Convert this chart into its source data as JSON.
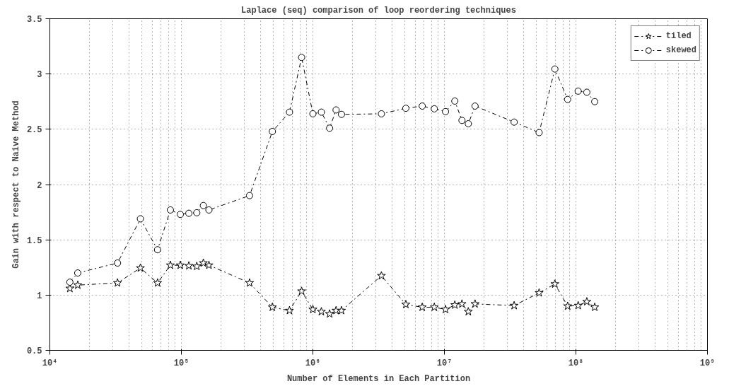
{
  "chart_data": {
    "type": "line",
    "title": "Laplace (seq) comparison of loop reordering techniques",
    "xlabel": "Number of Elements in Each Partition",
    "ylabel": "Gain with respect to Naive Method",
    "x": [
      14200,
      16300,
      32700,
      48800,
      65900,
      82500,
      98200,
      114000,
      131000,
      147000,
      162000,
      330000,
      492000,
      664000,
      821000,
      1000000,
      1160000,
      1340000,
      1500000,
      1650000,
      3320000,
      5090000,
      6780000,
      8380000,
      10200000,
      12000000,
      13600000,
      15200000,
      17100000,
      33900000,
      52500000,
      69200000,
      86500000,
      104000000,
      121000000,
      139000000
    ],
    "series": [
      {
        "name": "tiled",
        "color": "#000000",
        "marker": "star",
        "line_style": "dashed",
        "values": [
          1.06,
          1.09,
          1.11,
          1.245,
          1.11,
          1.27,
          1.27,
          1.265,
          1.26,
          1.29,
          1.27,
          1.11,
          0.89,
          0.86,
          1.035,
          0.87,
          0.85,
          0.83,
          0.86,
          0.86,
          1.175,
          0.915,
          0.89,
          0.89,
          0.87,
          0.91,
          0.92,
          0.85,
          0.92,
          0.905,
          1.02,
          1.1,
          0.9,
          0.905,
          0.94,
          0.89
        ]
      },
      {
        "name": "skewed",
        "color": "#000000",
        "marker": "circle",
        "line_style": "dashed",
        "values": [
          1.117,
          1.2,
          1.29,
          1.69,
          1.41,
          1.77,
          1.73,
          1.74,
          1.745,
          1.81,
          1.77,
          1.9,
          2.48,
          2.655,
          3.15,
          2.64,
          2.655,
          2.51,
          2.675,
          2.635,
          2.64,
          2.69,
          2.71,
          2.685,
          2.66,
          2.755,
          2.58,
          2.55,
          2.71,
          2.565,
          2.47,
          3.045,
          2.77,
          2.845,
          2.835,
          2.75
        ]
      }
    ],
    "log": "x",
    "xlim": [
      10000,
      1000000000
    ],
    "xticks": [
      {
        "value": 10000,
        "label": "10⁴"
      },
      {
        "value": 100000,
        "label": "10⁵"
      },
      {
        "value": 1000000,
        "label": "10⁶"
      },
      {
        "value": 10000000,
        "label": "10⁷"
      },
      {
        "value": 100000000,
        "label": "10⁸"
      },
      {
        "value": 1000000000,
        "label": "10⁹"
      }
    ],
    "ylim": [
      0.5,
      3.5
    ],
    "yticks": [
      0.5,
      1,
      1.5,
      2,
      2.5,
      3,
      3.5
    ],
    "grid": true,
    "legend": "top right"
  }
}
